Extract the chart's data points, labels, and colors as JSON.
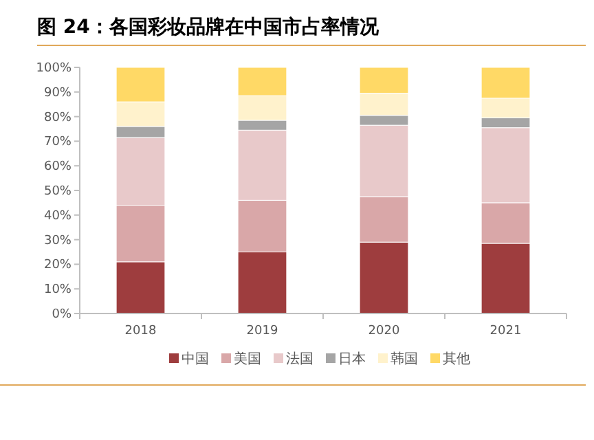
{
  "chart_data": {
    "type": "bar",
    "stacked": true,
    "title": "图 24：各国彩妆品牌在中国市占率情况",
    "categories": [
      "2018",
      "2019",
      "2020",
      "2021"
    ],
    "series": [
      {
        "name": "中国",
        "color": "#9e3d3e",
        "values": [
          21,
          25,
          29,
          28.5
        ]
      },
      {
        "name": "美国",
        "color": "#d9a7a8",
        "values": [
          23,
          21,
          18.5,
          16.5
        ]
      },
      {
        "name": "法国",
        "color": "#e8c9ca",
        "values": [
          27.5,
          28.5,
          29,
          30.5
        ]
      },
      {
        "name": "日本",
        "color": "#a5a5a5",
        "values": [
          4.5,
          4,
          4,
          4
        ]
      },
      {
        "name": "韩国",
        "color": "#fff2cc",
        "values": [
          10,
          10,
          9,
          8
        ]
      },
      {
        "name": "其他",
        "color": "#ffd966",
        "values": [
          14,
          11.5,
          10.5,
          12.5
        ]
      }
    ],
    "ylim": [
      0,
      100
    ],
    "yticks": [
      {
        "value": 0,
        "label": "0%"
      },
      {
        "value": 10,
        "label": "10%"
      },
      {
        "value": 20,
        "label": "20%"
      },
      {
        "value": 30,
        "label": "30%"
      },
      {
        "value": 40,
        "label": "40%"
      },
      {
        "value": 50,
        "label": "50%"
      },
      {
        "value": 60,
        "label": "60%"
      },
      {
        "value": 70,
        "label": "70%"
      },
      {
        "value": 80,
        "label": "80%"
      },
      {
        "value": 90,
        "label": "90%"
      },
      {
        "value": 100,
        "label": "100%"
      }
    ],
    "legend": "bottom"
  }
}
